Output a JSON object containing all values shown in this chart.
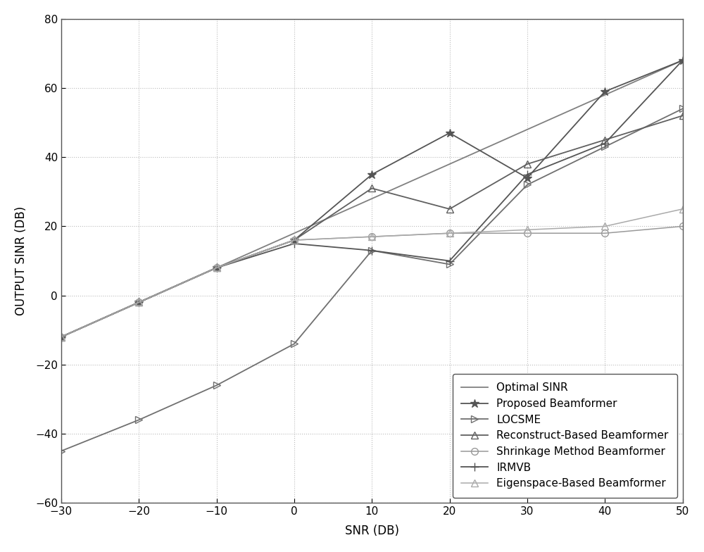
{
  "snr": [
    -30,
    -20,
    -10,
    0,
    10,
    20,
    30,
    40,
    50
  ],
  "series": [
    {
      "label": "Optimal SINR",
      "color": "#808080",
      "marker": "None",
      "linestyle": "-",
      "linewidth": 1.3,
      "markersize": 6,
      "markerfacecolor": "none",
      "values": [
        -12,
        -2,
        8,
        18,
        28,
        38,
        48,
        58,
        68
      ]
    },
    {
      "label": "Proposed Beamformer",
      "color": "#555555",
      "marker": "*",
      "linestyle": "-",
      "linewidth": 1.3,
      "markersize": 9,
      "markerfacecolor": "fill",
      "values": [
        -12,
        -2,
        8,
        16,
        35,
        47,
        34,
        59,
        68
      ]
    },
    {
      "label": "LOCSME",
      "color": "#707070",
      "marker": ">",
      "linestyle": "-",
      "linewidth": 1.3,
      "markersize": 7,
      "markerfacecolor": "none",
      "values": [
        -45,
        -36,
        -26,
        -14,
        13,
        9,
        32,
        43,
        54
      ]
    },
    {
      "label": "Reconstruct-Based Beamformer",
      "color": "#606060",
      "marker": "^",
      "linestyle": "-",
      "linewidth": 1.3,
      "markersize": 7,
      "markerfacecolor": "none",
      "values": [
        -12,
        -2,
        8,
        16,
        31,
        25,
        38,
        45,
        52
      ]
    },
    {
      "label": "Shrinkage Method Beamformer",
      "color": "#999999",
      "marker": "o",
      "linestyle": "-",
      "linewidth": 1.1,
      "markersize": 7,
      "markerfacecolor": "none",
      "values": [
        -12,
        -2,
        8,
        16,
        17,
        18,
        18,
        18,
        20
      ]
    },
    {
      "label": "IRMVB",
      "color": "#555555",
      "marker": "+",
      "linestyle": "-",
      "linewidth": 1.3,
      "markersize": 8,
      "markerfacecolor": "fill",
      "values": [
        -12,
        -2,
        8,
        15,
        13,
        10,
        35,
        44,
        68
      ]
    },
    {
      "label": "Eigenspace-Based Beamformer",
      "color": "#aaaaaa",
      "marker": "^",
      "linestyle": "-",
      "linewidth": 1.1,
      "markersize": 7,
      "markerfacecolor": "none",
      "values": [
        -12,
        -2,
        8,
        16,
        17,
        18,
        19,
        20,
        25
      ]
    }
  ],
  "xlabel": "SNR (DB)",
  "ylabel": "OUTPUT SINR (DB)",
  "xlim": [
    -30,
    50
  ],
  "ylim": [
    -60,
    80
  ],
  "xticks": [
    -30,
    -20,
    -10,
    0,
    10,
    20,
    30,
    40,
    50
  ],
  "yticks": [
    -60,
    -40,
    -20,
    0,
    20,
    40,
    60,
    80
  ],
  "legend_loc": "lower right",
  "background_color": "#ffffff",
  "grid_color": "#bbbbbb",
  "axis_color": "#555555"
}
